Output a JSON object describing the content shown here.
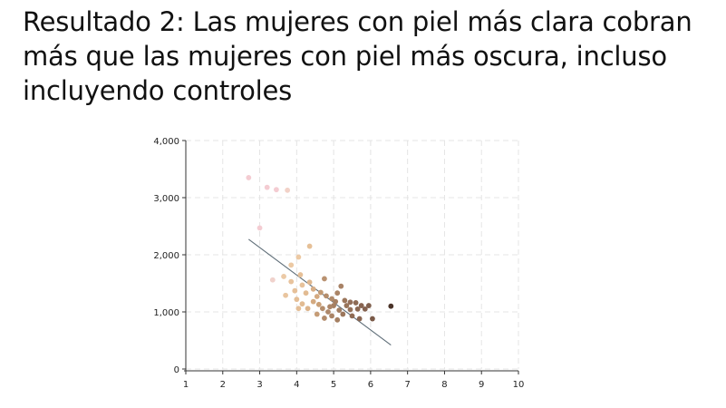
{
  "slide": {
    "title_lead": "Resultado 2:",
    "title_rest": " Las mujeres con piel más clara cobran más que las mujeres con piel más oscura, incluso incluyendo controles"
  },
  "chart_data": {
    "type": "scatter",
    "title": "",
    "xlabel": "",
    "ylabel": "",
    "xlim": [
      1,
      10
    ],
    "ylim": [
      0,
      4000
    ],
    "x_ticks": [
      "1",
      "2",
      "3",
      "4",
      "5",
      "6",
      "7",
      "8",
      "9",
      "10"
    ],
    "y_ticks": [
      "0",
      "1,000",
      "2,000",
      "3,000",
      "4,000"
    ],
    "x_tick_values": [
      1,
      2,
      3,
      4,
      5,
      6,
      7,
      8,
      9,
      10
    ],
    "y_tick_values": [
      0,
      1000,
      2000,
      3000,
      4000
    ],
    "grid": true,
    "legend": "none",
    "points": [
      {
        "x": 2.7,
        "y": 3350,
        "color": "#f4ccd2"
      },
      {
        "x": 3.2,
        "y": 3180,
        "color": "#f4ccd2"
      },
      {
        "x": 3.45,
        "y": 3140,
        "color": "#f4ccd2"
      },
      {
        "x": 3.75,
        "y": 3130,
        "color": "#f2d2c8"
      },
      {
        "x": 3.0,
        "y": 2470,
        "color": "#f4ccd2"
      },
      {
        "x": 3.35,
        "y": 1560,
        "color": "#f0d2cc"
      },
      {
        "x": 4.35,
        "y": 2150,
        "color": "#e6c097"
      },
      {
        "x": 3.85,
        "y": 1820,
        "color": "#ecc9a4"
      },
      {
        "x": 4.05,
        "y": 1960,
        "color": "#ecc9a4"
      },
      {
        "x": 3.65,
        "y": 1620,
        "color": "#eccaa6"
      },
      {
        "x": 3.85,
        "y": 1530,
        "color": "#e8c39d"
      },
      {
        "x": 4.1,
        "y": 1650,
        "color": "#e6c098"
      },
      {
        "x": 4.15,
        "y": 1470,
        "color": "#e7c29b"
      },
      {
        "x": 4.35,
        "y": 1520,
        "color": "#dfb78e"
      },
      {
        "x": 3.7,
        "y": 1290,
        "color": "#e9c59f"
      },
      {
        "x": 3.95,
        "y": 1370,
        "color": "#e6c099"
      },
      {
        "x": 4.0,
        "y": 1220,
        "color": "#e4be96"
      },
      {
        "x": 4.25,
        "y": 1330,
        "color": "#e2bb92"
      },
      {
        "x": 4.45,
        "y": 1400,
        "color": "#d8ae86"
      },
      {
        "x": 4.55,
        "y": 1270,
        "color": "#d4aa81"
      },
      {
        "x": 4.15,
        "y": 1140,
        "color": "#e2bb92"
      },
      {
        "x": 4.3,
        "y": 1060,
        "color": "#dcb38a"
      },
      {
        "x": 4.05,
        "y": 1060,
        "color": "#e4be97"
      },
      {
        "x": 4.45,
        "y": 1180,
        "color": "#d4aa80"
      },
      {
        "x": 4.6,
        "y": 1130,
        "color": "#caa077"
      },
      {
        "x": 4.75,
        "y": 1580,
        "color": "#b99271"
      },
      {
        "x": 4.65,
        "y": 1340,
        "color": "#c29a74"
      },
      {
        "x": 4.8,
        "y": 1280,
        "color": "#b48d6c"
      },
      {
        "x": 4.95,
        "y": 1230,
        "color": "#b08a6a"
      },
      {
        "x": 5.1,
        "y": 1330,
        "color": "#aa8466"
      },
      {
        "x": 5.2,
        "y": 1450,
        "color": "#a88266"
      },
      {
        "x": 4.7,
        "y": 1060,
        "color": "#b48d6c"
      },
      {
        "x": 4.85,
        "y": 1000,
        "color": "#ad8769"
      },
      {
        "x": 5.0,
        "y": 1110,
        "color": "#a68063"
      },
      {
        "x": 5.15,
        "y": 1030,
        "color": "#a27d61"
      },
      {
        "x": 4.55,
        "y": 960,
        "color": "#c59c76"
      },
      {
        "x": 4.75,
        "y": 890,
        "color": "#b28b6b"
      },
      {
        "x": 4.95,
        "y": 930,
        "color": "#a98365"
      },
      {
        "x": 5.1,
        "y": 860,
        "color": "#a47f62"
      },
      {
        "x": 5.25,
        "y": 960,
        "color": "#9c775c"
      },
      {
        "x": 5.35,
        "y": 1110,
        "color": "#98745a"
      },
      {
        "x": 5.45,
        "y": 1040,
        "color": "#957159"
      },
      {
        "x": 5.5,
        "y": 930,
        "color": "#8f6b54"
      },
      {
        "x": 5.6,
        "y": 1160,
        "color": "#8e6b54"
      },
      {
        "x": 5.65,
        "y": 1050,
        "color": "#8b6852"
      },
      {
        "x": 5.75,
        "y": 1110,
        "color": "#876450"
      },
      {
        "x": 5.85,
        "y": 1050,
        "color": "#846250"
      },
      {
        "x": 5.95,
        "y": 1110,
        "color": "#80604e"
      },
      {
        "x": 5.7,
        "y": 880,
        "color": "#896652"
      },
      {
        "x": 6.05,
        "y": 880,
        "color": "#7a5a48"
      },
      {
        "x": 5.3,
        "y": 1200,
        "color": "#9b765b"
      },
      {
        "x": 5.45,
        "y": 1170,
        "color": "#94705a"
      },
      {
        "x": 5.05,
        "y": 1180,
        "color": "#a68063"
      },
      {
        "x": 4.9,
        "y": 1090,
        "color": "#ab8568"
      },
      {
        "x": 6.55,
        "y": 1100,
        "color": "#4a3328"
      }
    ],
    "trend_line": {
      "x": [
        2.7,
        6.55
      ],
      "y": [
        2270,
        420
      ],
      "color": "#5f6e78"
    }
  }
}
